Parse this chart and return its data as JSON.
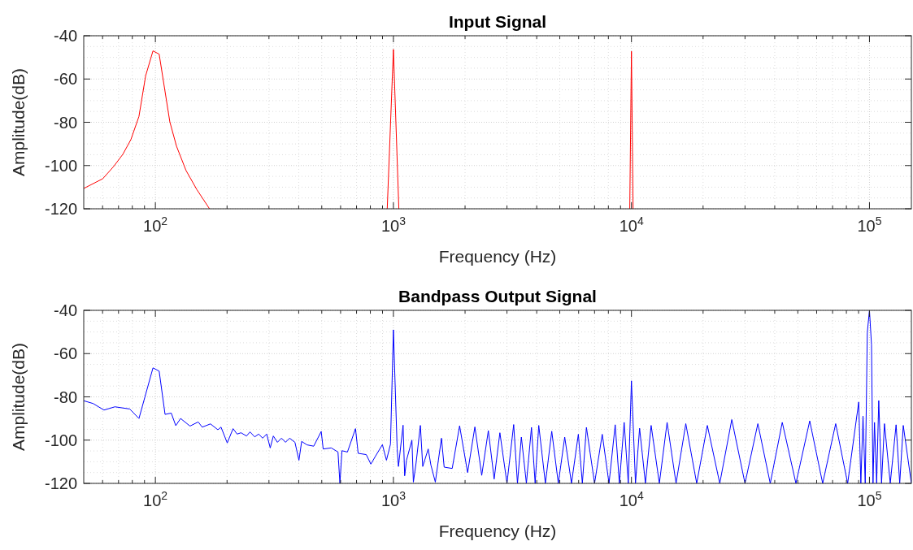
{
  "chart_data": [
    {
      "type": "line",
      "title": "Input Signal",
      "xlabel": "Frequency (Hz)",
      "ylabel": "Amplitude(dB)",
      "log": "x",
      "grid": true,
      "xlim": [
        50,
        150000
      ],
      "ylim": [
        -120,
        -40
      ],
      "xticks": [
        {
          "value": 100,
          "label": "10$^{2}$"
        },
        {
          "value": 1000,
          "label": "10$^{3}$"
        },
        {
          "value": 10000,
          "label": "10$^{4}$"
        },
        {
          "value": 100000,
          "label": "10$^{5}$"
        }
      ],
      "yticks": [
        -120,
        -100,
        -80,
        -60,
        -40
      ],
      "series": [
        {
          "color": "#ff0000",
          "x": [
            50,
            60.1,
            66.7,
            73,
            78.9,
            85.3,
            91,
            97.7,
            103.7,
            115,
            122.7,
            134.5,
            149.3,
            168.8,
            400,
            942,
            1000,
            1054,
            5000,
            9840,
            10000,
            10160
          ],
          "values": [
            -110.6,
            -106.1,
            -100.5,
            -94.8,
            -88,
            -77.3,
            -58.5,
            -47,
            -48.5,
            -79.8,
            -91.1,
            -102.3,
            -111.1,
            -120,
            null,
            -120,
            -46.3,
            -120,
            null,
            -120,
            -47.2,
            -120
          ]
        }
      ]
    },
    {
      "type": "line",
      "title": "Bandpass Output Signal",
      "xlabel": "Frequency (Hz)",
      "ylabel": "Amplitude(dB)",
      "log": "x",
      "grid": true,
      "xlim": [
        50,
        150000
      ],
      "ylim": [
        -120,
        -40
      ],
      "xticks": [
        {
          "value": 100,
          "label": "10$^{2}$"
        },
        {
          "value": 1000,
          "label": "10$^{3}$"
        },
        {
          "value": 10000,
          "label": "10$^{4}$"
        },
        {
          "value": 100000,
          "label": "10$^{5}$"
        }
      ],
      "yticks": [
        -120,
        -100,
        -80,
        -60,
        -40
      ],
      "series": [
        {
          "color": "#0000ff",
          "x": [
            50,
            54.8,
            60.8,
            67.6,
            78,
            85.3,
            97.7,
            103.7,
            109.8,
            116.6,
            121.8,
            127.6,
            139.8,
            151.3,
            157.3,
            170.3,
            183,
            188.7,
            200.4,
            212,
            220.4,
            229,
            241.5,
            249.8,
            261.4,
            271.6,
            282.3,
            293.5,
            303.7,
            313,
            325.6,
            338.5,
            352.2,
            366.3,
            385.7,
            401,
            411.6,
            433.5,
            462.6,
            497.4,
            507,
            548,
            585,
            596,
            608,
            641,
            693,
            711,
            769,
            804,
            842,
            899,
            935,
            972,
            1000,
            1037,
            1050,
            1098,
            1115,
            1135,
            1196,
            1213,
            1245,
            1298,
            1328,
            1400,
            1437,
            1500,
            1592,
            1634,
            1766,
            1897,
            2050,
            2199,
            2350,
            2505,
            2650,
            2801,
            3000,
            3201,
            3320,
            3448,
            3620,
            3802,
            3940,
            4080,
            4350,
            4626,
            4930,
            5245,
            5600,
            5983,
            6220,
            6470,
            7000,
            7540,
            8050,
            8547,
            8900,
            9320,
            9700,
            10000,
            10400,
            10820,
            11450,
            12100,
            13100,
            14120,
            15400,
            16920,
            18800,
            20840,
            23500,
            26400,
            30000,
            33970,
            38300,
            43020,
            49100,
            56110,
            63600,
            72130,
            81000,
            90130,
            92000,
            93960,
            96000,
            97950,
            100000,
            102000,
            103500,
            105000,
            107200,
            109400,
            112400,
            115600,
            122300,
            129400,
            134000,
            138700,
            150000
          ],
          "values": [
            -81.8,
            -83.1,
            -86.1,
            -84.6,
            -85.6,
            -90,
            -66.6,
            -68.1,
            -88.1,
            -87.5,
            -93.3,
            -90,
            -93.5,
            -91.6,
            -94,
            -92.5,
            -95.2,
            -94,
            -101.3,
            -94.7,
            -97.2,
            -96.6,
            -98.1,
            -96.2,
            -98.5,
            -97.2,
            -99.1,
            -97.2,
            -103.6,
            -98.1,
            -101,
            -99.1,
            -101,
            -99.1,
            -101,
            -109.3,
            -100.6,
            -102.2,
            -102.8,
            -96,
            -104.1,
            -103.6,
            -105.5,
            -120,
            -104.9,
            -105.5,
            -94.7,
            -106.1,
            -106.7,
            -111.1,
            -107.3,
            -102.1,
            -109.3,
            -101.9,
            -49,
            -104.1,
            -112.2,
            -93.1,
            -116.5,
            -109.3,
            -100,
            -119.4,
            -110.6,
            -93.2,
            -112.2,
            -104.1,
            -111.5,
            -119.4,
            -99.1,
            -112.5,
            -113.1,
            -93.4,
            -115,
            -93.9,
            -116.3,
            -95.6,
            -118,
            -96.6,
            -120,
            -92.8,
            -120,
            -98.6,
            -120,
            -94.1,
            -120,
            -93.2,
            -120,
            -95.9,
            -120,
            -98.6,
            -120,
            -97.3,
            -120,
            -94.1,
            -120,
            -97.3,
            -120,
            -92.9,
            -120,
            -91.8,
            -120,
            -72.6,
            -120,
            -94.5,
            -120,
            -93.2,
            -120,
            -91.8,
            -120,
            -92.4,
            -120,
            -93.2,
            -120,
            -90.5,
            -120,
            -92.4,
            -120,
            -91.8,
            -120,
            -91.1,
            -120,
            -92.4,
            -120,
            -82.4,
            -120,
            -88.9,
            -120,
            -50.2,
            -40,
            -55.9,
            -120,
            -91.8,
            -120,
            -81.7,
            -120,
            -92.4,
            -120,
            -92.9,
            -120,
            -93.2,
            -120
          ]
        }
      ]
    }
  ]
}
